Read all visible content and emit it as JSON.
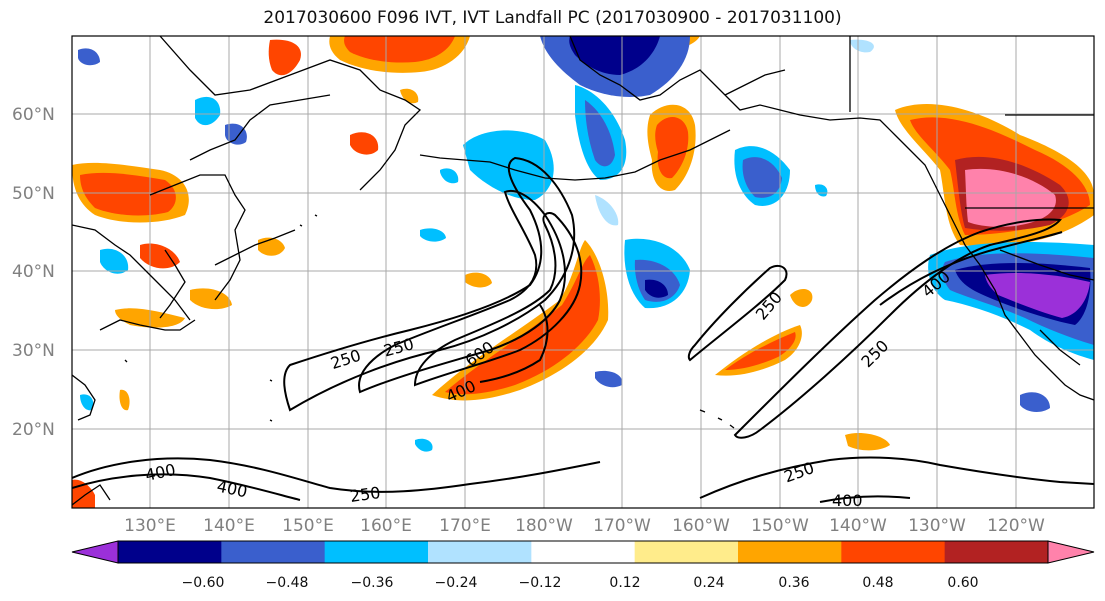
{
  "title": "2017030600 F096 IVT, IVT Landfall PC (2017030900 - 2017031100)",
  "lat_labels": [
    "60°N",
    "50°N",
    "40°N",
    "30°N",
    "20°N"
  ],
  "lon_labels": [
    "130°E",
    "140°E",
    "150°E",
    "160°E",
    "170°E",
    "180°W",
    "170°W",
    "160°W",
    "150°W",
    "140°W",
    "130°W",
    "120°W"
  ],
  "colorbar": {
    "ticks": [
      "−0.60",
      "−0.48",
      "−0.36",
      "−0.24",
      "−0.12",
      "0.12",
      "0.24",
      "0.36",
      "0.48",
      "0.60"
    ],
    "colors": [
      "#9b30d9",
      "#00008b",
      "#3a5fcd",
      "#00bfff",
      "#b0e2ff",
      "#ffffff",
      "#ffec8b",
      "#ffa500",
      "#ff4500",
      "#b22222",
      "#ff82ab"
    ]
  },
  "contour_labels": [
    "250",
    "250",
    "600",
    "400",
    "250",
    "400",
    "250",
    "400",
    "400",
    "250",
    "250",
    "400"
  ],
  "colors": {
    "land_outline": "#000000",
    "grid": "#a0a0a0",
    "contour": "#000000"
  }
}
